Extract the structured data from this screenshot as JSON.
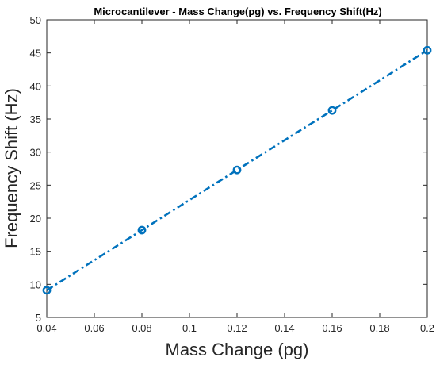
{
  "chart_data": {
    "type": "line",
    "title": "Microcantilever - Mass Change(pg) vs. Frequency Shift(Hz)",
    "xlabel": "Mass Change (pg)",
    "ylabel": "Frequency Shift (Hz)",
    "xlim": [
      0.04,
      0.2
    ],
    "ylim": [
      5,
      50
    ],
    "xticks": [
      0.04,
      0.06,
      0.08,
      0.1,
      0.12,
      0.14,
      0.16,
      0.18,
      0.2
    ],
    "xtick_labels": [
      "0.04",
      "0.06",
      "0.08",
      "0.1",
      "0.12",
      "0.14",
      "0.16",
      "0.18",
      "0.2"
    ],
    "yticks": [
      5,
      10,
      15,
      20,
      25,
      30,
      35,
      40,
      45,
      50
    ],
    "ytick_labels": [
      "5",
      "10",
      "15",
      "20",
      "25",
      "30",
      "35",
      "40",
      "45",
      "50"
    ],
    "grid": false,
    "line_style": "dash-dot",
    "marker": "circle",
    "color": "#0072BD",
    "series": [
      {
        "x": [
          0.04,
          0.08,
          0.12,
          0.16,
          0.2
        ],
        "y": [
          9.1,
          18.2,
          27.3,
          36.3,
          45.4
        ]
      }
    ]
  }
}
